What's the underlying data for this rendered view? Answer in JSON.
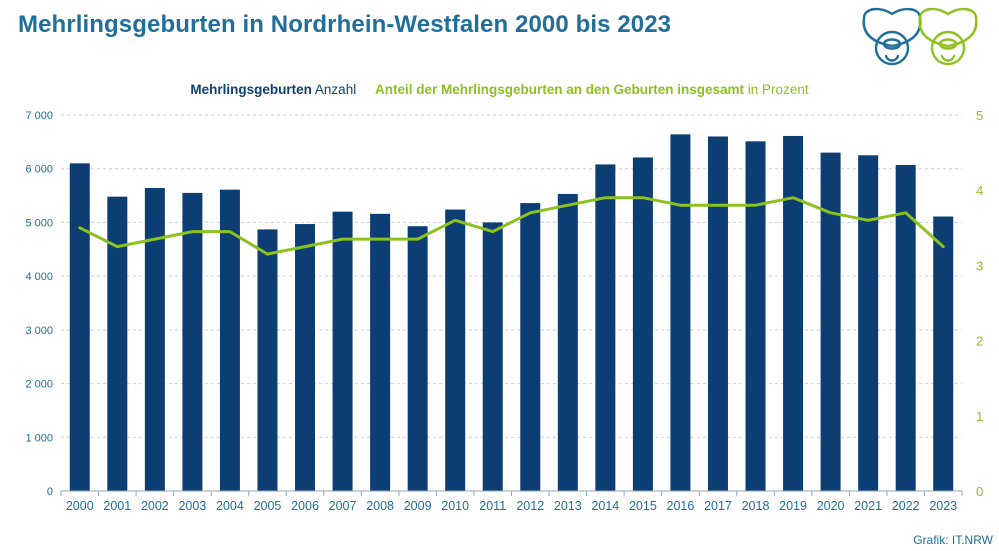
{
  "title": "Mehrlingsgeburten in Nordrhein-Westfalen 2000 bis 2023",
  "legend": {
    "bar_bold": "Mehrlingsgeburten",
    "bar_rest": "Anzahl",
    "line_bold": "Anteil der Mehrlingsgeburten an den Geburten insgesamt",
    "line_rest": "in Prozent"
  },
  "source": "Grafik: IT.NRW",
  "logo_icon": "pacifier-icon",
  "colors": {
    "bar": "#0d3e73",
    "line": "#8cc21f",
    "title": "#1f6f9a",
    "grid": "#c8d3dc",
    "axis_left": "#1f6f9a",
    "axis_right": "#8cc21f"
  },
  "chart_data": {
    "type": "bar",
    "categories": [
      "2000",
      "2001",
      "2002",
      "2003",
      "2004",
      "2005",
      "2006",
      "2007",
      "2008",
      "2009",
      "2010",
      "2011",
      "2012",
      "2013",
      "2014",
      "2015",
      "2016",
      "2017",
      "2018",
      "2019",
      "2020",
      "2021",
      "2022",
      "2023"
    ],
    "series": [
      {
        "name": "Mehrlingsgeburten Anzahl",
        "type": "bar",
        "axis": "left",
        "values": [
          6100,
          5480,
          5640,
          5550,
          5610,
          4870,
          4970,
          5200,
          5160,
          4930,
          5240,
          5000,
          5360,
          5530,
          6080,
          6210,
          6640,
          6600,
          6510,
          6610,
          6300,
          6250,
          6070,
          5110
        ]
      },
      {
        "name": "Anteil der Mehrlingsgeburten an den Geburten insgesamt in Prozent",
        "type": "line",
        "axis": "right",
        "values": [
          3.5,
          3.25,
          3.35,
          3.45,
          3.45,
          3.15,
          3.25,
          3.35,
          3.35,
          3.35,
          3.6,
          3.45,
          3.7,
          3.8,
          3.9,
          3.9,
          3.8,
          3.8,
          3.8,
          3.9,
          3.7,
          3.6,
          3.7,
          3.25
        ]
      }
    ],
    "y_left": {
      "min": 0,
      "max": 7000,
      "ticks": [
        0,
        1000,
        2000,
        3000,
        4000,
        5000,
        6000,
        7000
      ],
      "tick_labels": [
        "0",
        "1 000",
        "2 000",
        "3 000",
        "4 000",
        "5 000",
        "6 000",
        "7 000"
      ]
    },
    "y_right": {
      "min": 0,
      "max": 5,
      "ticks": [
        0,
        1,
        2,
        3,
        4,
        5
      ],
      "tick_labels": [
        "0",
        "1",
        "2",
        "3",
        "4",
        "5"
      ]
    },
    "grid": true,
    "legend_position": "top"
  }
}
